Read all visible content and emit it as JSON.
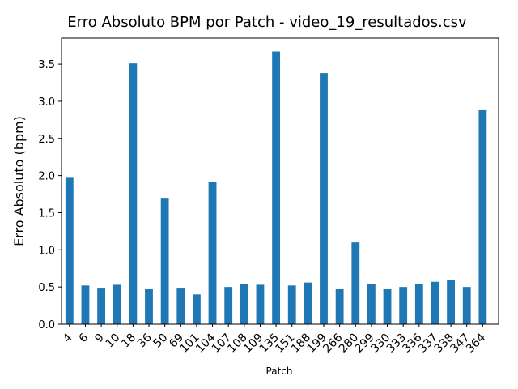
{
  "chart_data": {
    "type": "bar",
    "title": "Erro Absoluto BPM por Patch - video_19_resultados.csv",
    "xlabel": "Patch",
    "ylabel": "Erro Absoluto (bpm)",
    "categories": [
      "4",
      "6",
      "9",
      "10",
      "18",
      "36",
      "50",
      "69",
      "101",
      "104",
      "107",
      "108",
      "109",
      "135",
      "151",
      "188",
      "199",
      "266",
      "280",
      "299",
      "330",
      "333",
      "336",
      "337",
      "338",
      "347",
      "364"
    ],
    "values": [
      1.97,
      0.52,
      0.49,
      0.53,
      3.51,
      0.48,
      1.7,
      0.49,
      0.4,
      1.91,
      0.5,
      0.54,
      0.53,
      3.67,
      0.52,
      0.56,
      3.38,
      0.47,
      1.1,
      0.54,
      0.47,
      0.5,
      0.54,
      0.57,
      0.6,
      0.5,
      2.88
    ],
    "ylim": [
      0,
      3.85
    ],
    "yticks": [
      "0.0",
      "0.5",
      "1.0",
      "1.5",
      "2.0",
      "2.5",
      "3.0",
      "3.5"
    ],
    "bar_color": "#1f77b4",
    "grid": false,
    "legend": "none"
  }
}
